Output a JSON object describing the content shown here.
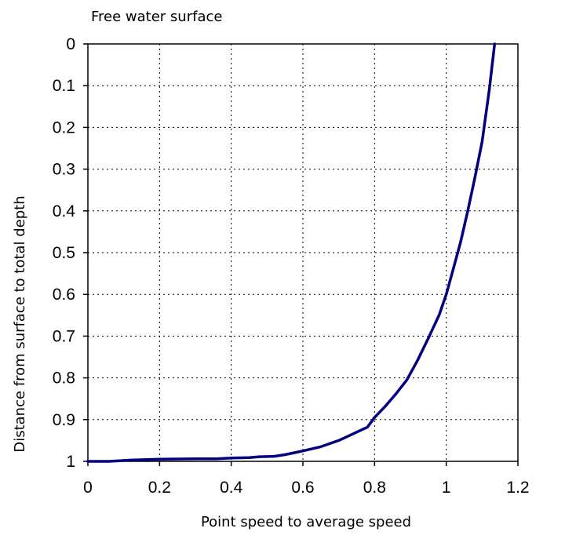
{
  "chart_data": {
    "type": "line",
    "annotation": "Free water surface",
    "xlabel": "Point speed to average speed",
    "ylabel": "Distance from surface to total depth",
    "xlim": [
      0,
      1.2
    ],
    "ylim": [
      0,
      1
    ],
    "y_inverted": true,
    "grid": true,
    "x_ticks": [
      "0",
      "0.2",
      "0.4",
      "0.6",
      "0.8",
      "1",
      "1.2"
    ],
    "y_ticks": [
      "0",
      "0.1",
      "0.2",
      "0.3",
      "0.4",
      "0.5",
      "0.6",
      "0.7",
      "0.8",
      "0.9",
      "1"
    ],
    "line_color": "#000080",
    "series": [
      {
        "x": [
          0.0,
          0.06,
          0.12,
          0.2,
          0.3,
          0.36,
          0.4,
          0.45,
          0.48,
          0.52,
          0.55,
          0.6,
          0.65,
          0.7,
          0.75,
          0.78,
          0.8,
          0.83,
          0.86,
          0.89,
          0.92,
          0.95,
          0.98,
          1.0,
          1.02,
          1.04,
          1.06,
          1.08,
          1.1,
          1.12,
          1.135
        ],
        "y": [
          1.0,
          1.0,
          0.997,
          0.995,
          0.994,
          0.994,
          0.992,
          0.991,
          0.989,
          0.988,
          0.984,
          0.975,
          0.965,
          0.95,
          0.93,
          0.918,
          0.895,
          0.868,
          0.838,
          0.805,
          0.758,
          0.705,
          0.65,
          0.6,
          0.538,
          0.475,
          0.4,
          0.32,
          0.235,
          0.11,
          0.0
        ]
      }
    ]
  }
}
